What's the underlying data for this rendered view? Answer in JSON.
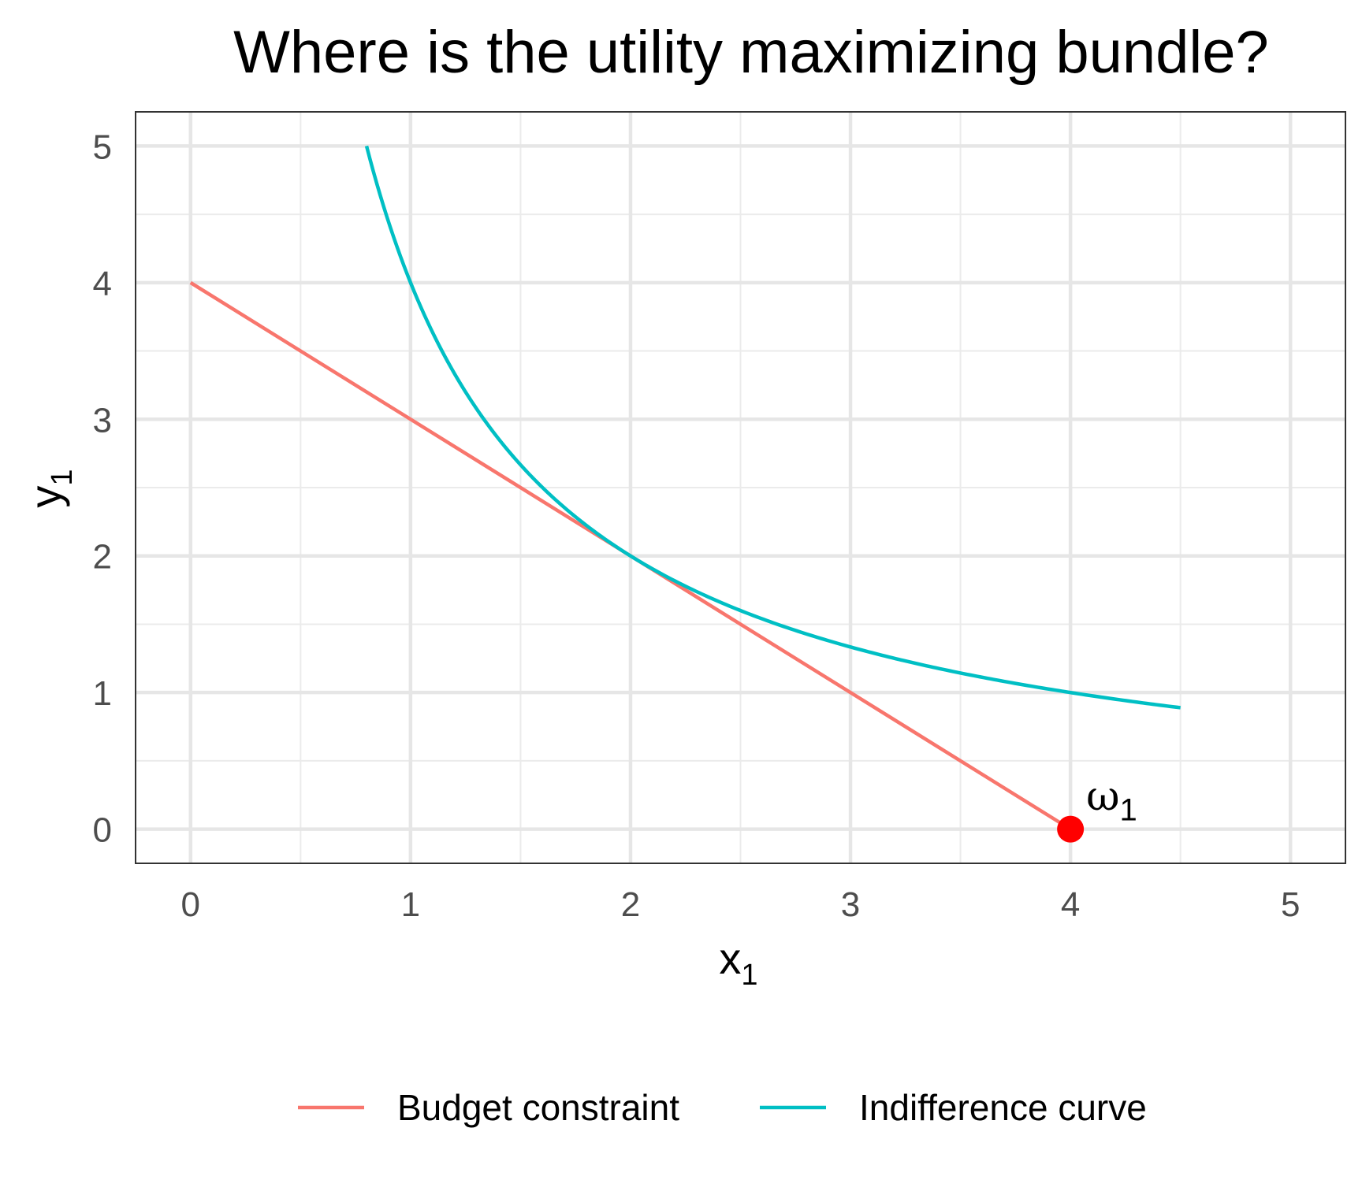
{
  "chart_data": {
    "type": "line",
    "title": "Where is the utility maximizing bundle?",
    "xlabel": {
      "base": "x",
      "sub": "1"
    },
    "ylabel": {
      "base": "y",
      "sub": "1"
    },
    "xlim": [
      -0.25,
      5.25
    ],
    "ylim": [
      -0.25,
      5.25
    ],
    "x_ticks": [
      "0",
      "1",
      "2",
      "3",
      "4",
      "5"
    ],
    "y_ticks": [
      "0",
      "1",
      "2",
      "3",
      "4",
      "5"
    ],
    "grid": true,
    "legend_position": "bottom",
    "series": [
      {
        "name": "Budget constraint",
        "color": "#F8766D",
        "points": [
          [
            0,
            4
          ],
          [
            4,
            0
          ]
        ]
      },
      {
        "name": "Indifference curve",
        "color": "#00BFC4",
        "function": "y = 4 / x",
        "x_range": [
          0.8,
          4.5
        ]
      }
    ],
    "annotations": [
      {
        "label": {
          "base": "ω",
          "sub": "1"
        },
        "point": [
          4,
          0
        ],
        "color": "#FF0000"
      }
    ]
  }
}
